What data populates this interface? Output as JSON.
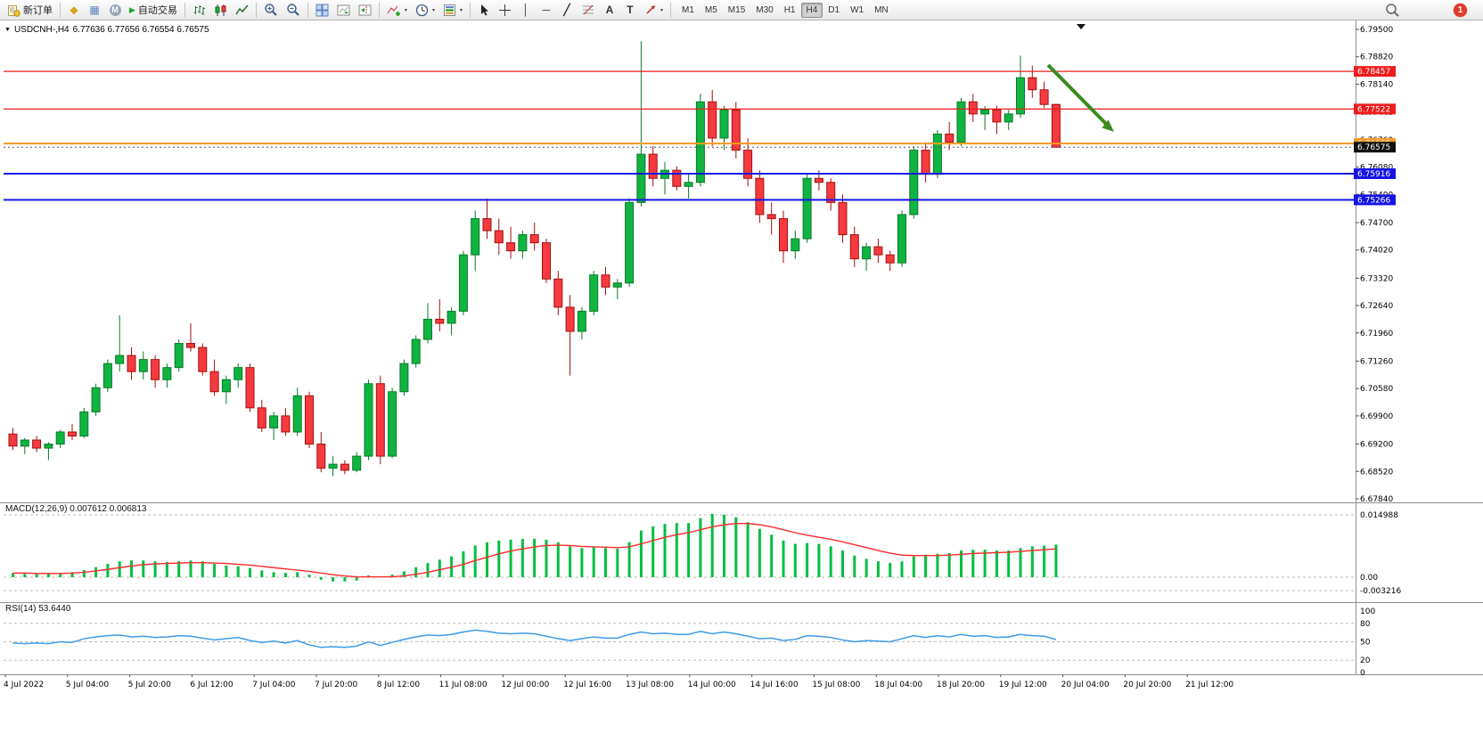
{
  "toolbar": {
    "new_order_label": "新订单",
    "autotrading_label": "自动交易",
    "timeframes": [
      "M1",
      "M5",
      "M15",
      "M30",
      "H1",
      "H4",
      "D1",
      "W1",
      "MN"
    ],
    "active_timeframe": "H4",
    "notification_count": "1"
  },
  "icons": {
    "metaeditor": "◆",
    "terminal": "▦",
    "metaquotes": "M",
    "autotrading_play": "▶",
    "vertical_line": "│",
    "horizontal_line": "─",
    "trendline": "╱",
    "text_tool": "A",
    "label_tool": "T",
    "dropdown_caret": "▾",
    "title_caret": "▼"
  },
  "chart_window": {
    "symbol_title": "USDCNH-,H4",
    "ohlc": "6.77636 6.77656 6.76554 6.76575"
  },
  "main_chart": {
    "price_max": 6.795,
    "price_min": 6.6784,
    "axis_ticks": [
      "6.79500",
      "6.78820",
      "6.78140",
      "6.77440",
      "6.76760",
      "6.76080",
      "6.75400",
      "6.74700",
      "6.74020",
      "6.73320",
      "6.72640",
      "6.71960",
      "6.71260",
      "6.70580",
      "6.69900",
      "6.69200",
      "6.68520",
      "6.67840"
    ],
    "levels": [
      {
        "label": "6.78457",
        "price": 6.78457,
        "color": "#ee1c1c",
        "width": 1.2
      },
      {
        "label": "6.77522",
        "price": 6.77522,
        "color": "#ee1c1c",
        "width": 1.2
      },
      {
        "label": "6.76665",
        "price": 6.76665,
        "color": "#f59a23",
        "width": 2
      },
      {
        "label": "6.75916",
        "price": 6.75916,
        "color": "#1414e6",
        "width": 2
      },
      {
        "label": "6.75266",
        "price": 6.75266,
        "color": "#1414e6",
        "width": 2
      }
    ],
    "current_price": {
      "label": "6.76575",
      "price": 6.76575,
      "badge_color": "#101010"
    },
    "up_color": "#0fb540",
    "up_stroke": "#0a7a2a",
    "down_color": "#f53b3f",
    "down_stroke": "#a50f0f",
    "arrow_color": "#3a8a1e",
    "candles": [
      [
        6.6945,
        6.696,
        6.6905,
        6.6915
      ],
      [
        6.6915,
        6.6935,
        6.6895,
        6.693
      ],
      [
        6.693,
        6.694,
        6.69,
        6.691
      ],
      [
        6.691,
        6.6925,
        6.688,
        6.692
      ],
      [
        6.692,
        6.6955,
        6.691,
        6.695
      ],
      [
        6.695,
        6.697,
        6.693,
        6.694
      ],
      [
        6.694,
        6.701,
        6.6935,
        6.7
      ],
      [
        6.7,
        6.707,
        6.699,
        6.706
      ],
      [
        6.706,
        6.713,
        6.705,
        6.712
      ],
      [
        6.712,
        6.724,
        6.71,
        6.714
      ],
      [
        6.714,
        6.716,
        6.708,
        6.71
      ],
      [
        6.71,
        6.715,
        6.708,
        6.713
      ],
      [
        6.713,
        6.714,
        6.706,
        6.708
      ],
      [
        6.708,
        6.712,
        6.706,
        6.711
      ],
      [
        6.711,
        6.718,
        6.71,
        6.717
      ],
      [
        6.717,
        6.722,
        6.715,
        6.716
      ],
      [
        6.716,
        6.717,
        6.709,
        6.71
      ],
      [
        6.71,
        6.713,
        6.704,
        6.705
      ],
      [
        6.705,
        6.709,
        6.702,
        6.708
      ],
      [
        6.708,
        6.712,
        6.706,
        6.711
      ],
      [
        6.711,
        6.712,
        6.7,
        6.701
      ],
      [
        6.701,
        6.703,
        6.695,
        6.696
      ],
      [
        6.696,
        6.7,
        6.693,
        6.699
      ],
      [
        6.699,
        6.701,
        6.694,
        6.695
      ],
      [
        6.695,
        6.706,
        6.694,
        6.704
      ],
      [
        6.704,
        6.705,
        6.691,
        6.692
      ],
      [
        6.692,
        6.695,
        6.685,
        6.686
      ],
      [
        6.686,
        6.689,
        6.684,
        6.687
      ],
      [
        6.687,
        6.688,
        6.6845,
        6.6855
      ],
      [
        6.6855,
        6.69,
        6.685,
        6.689
      ],
      [
        6.689,
        6.708,
        6.688,
        6.707
      ],
      [
        6.707,
        6.709,
        6.687,
        6.689
      ],
      [
        6.689,
        6.706,
        6.6885,
        6.705
      ],
      [
        6.705,
        6.713,
        6.704,
        6.712
      ],
      [
        6.712,
        6.719,
        6.711,
        6.718
      ],
      [
        6.718,
        6.727,
        6.717,
        6.723
      ],
      [
        6.723,
        6.728,
        6.72,
        6.722
      ],
      [
        6.722,
        6.726,
        6.719,
        6.725
      ],
      [
        6.725,
        6.74,
        6.724,
        6.739
      ],
      [
        6.739,
        6.75,
        6.735,
        6.748
      ],
      [
        6.748,
        6.753,
        6.743,
        6.745
      ],
      [
        6.745,
        6.748,
        6.739,
        6.742
      ],
      [
        6.742,
        6.746,
        6.738,
        6.74
      ],
      [
        6.74,
        6.745,
        6.738,
        6.744
      ],
      [
        6.744,
        6.747,
        6.74,
        6.742
      ],
      [
        6.742,
        6.743,
        6.732,
        6.733
      ],
      [
        6.733,
        6.735,
        6.724,
        6.726
      ],
      [
        6.726,
        6.729,
        6.709,
        6.72
      ],
      [
        6.72,
        6.726,
        6.718,
        6.725
      ],
      [
        6.725,
        6.735,
        6.724,
        6.734
      ],
      [
        6.734,
        6.736,
        6.729,
        6.731
      ],
      [
        6.731,
        6.733,
        6.728,
        6.732
      ],
      [
        6.732,
        6.753,
        6.731,
        6.752
      ],
      [
        6.752,
        6.792,
        6.751,
        6.764
      ],
      [
        6.764,
        6.766,
        6.756,
        6.758
      ],
      [
        6.758,
        6.762,
        6.754,
        6.76
      ],
      [
        6.76,
        6.761,
        6.755,
        6.756
      ],
      [
        6.756,
        6.759,
        6.753,
        6.757
      ],
      [
        6.757,
        6.779,
        6.756,
        6.777
      ],
      [
        6.777,
        6.78,
        6.766,
        6.768
      ],
      [
        6.768,
        6.776,
        6.765,
        6.775
      ],
      [
        6.775,
        6.777,
        6.763,
        6.765
      ],
      [
        6.765,
        6.768,
        6.756,
        6.758
      ],
      [
        6.758,
        6.76,
        6.747,
        6.749
      ],
      [
        6.749,
        6.752,
        6.744,
        6.748
      ],
      [
        6.748,
        6.75,
        6.737,
        6.74
      ],
      [
        6.74,
        6.745,
        6.738,
        6.743
      ],
      [
        6.743,
        6.759,
        6.742,
        6.758
      ],
      [
        6.758,
        6.76,
        6.755,
        6.757
      ],
      [
        6.757,
        6.758,
        6.75,
        6.752
      ],
      [
        6.752,
        6.754,
        6.742,
        6.744
      ],
      [
        6.744,
        6.746,
        6.736,
        6.738
      ],
      [
        6.738,
        6.742,
        6.735,
        6.741
      ],
      [
        6.741,
        6.743,
        6.737,
        6.739
      ],
      [
        6.739,
        6.74,
        6.735,
        6.737
      ],
      [
        6.737,
        6.75,
        6.736,
        6.749
      ],
      [
        6.749,
        6.766,
        6.748,
        6.765
      ],
      [
        6.765,
        6.767,
        6.757,
        6.759
      ],
      [
        6.759,
        6.77,
        6.758,
        6.769
      ],
      [
        6.769,
        6.772,
        6.765,
        6.767
      ],
      [
        6.767,
        6.778,
        6.766,
        6.777
      ],
      [
        6.777,
        6.779,
        6.772,
        6.774
      ],
      [
        6.774,
        6.776,
        6.77,
        6.775
      ],
      [
        6.775,
        6.776,
        6.769,
        6.772
      ],
      [
        6.772,
        6.775,
        6.77,
        6.774
      ],
      [
        6.774,
        6.7885,
        6.773,
        6.783
      ],
      [
        6.783,
        6.786,
        6.778,
        6.78
      ],
      [
        6.78,
        6.782,
        6.7755,
        6.77636
      ],
      [
        6.77636,
        6.77656,
        6.76554,
        6.76575
      ]
    ]
  },
  "macd": {
    "label": "MACD(12,26,9) 0.007612 0.006813",
    "scale_labels": [
      "0.014988",
      "0.00",
      "-0.003216"
    ],
    "scale_values": [
      0.014988,
      0,
      -0.003216
    ],
    "hist_color": "#00bf40",
    "signal_color": "#ff2a2a",
    "histogram": [
      0.0008,
      0.0006,
      0.0007,
      0.0006,
      0.0008,
      0.001,
      0.0015,
      0.0022,
      0.003,
      0.0036,
      0.0038,
      0.0038,
      0.0036,
      0.0034,
      0.0036,
      0.0038,
      0.0036,
      0.003,
      0.0026,
      0.0024,
      0.002,
      0.0014,
      0.001,
      0.0008,
      0.001,
      0.0004,
      -0.0004,
      -0.0008,
      -0.0008,
      -0.0006,
      0.0002,
      0,
      0.0004,
      0.0012,
      0.0022,
      0.0032,
      0.004,
      0.0048,
      0.006,
      0.0074,
      0.0082,
      0.0086,
      0.0088,
      0.009,
      0.009,
      0.0088,
      0.0082,
      0.0072,
      0.0068,
      0.007,
      0.0068,
      0.0066,
      0.0082,
      0.011,
      0.012,
      0.0126,
      0.0128,
      0.0128,
      0.014,
      0.015,
      0.0148,
      0.0142,
      0.013,
      0.0114,
      0.01,
      0.0086,
      0.0078,
      0.008,
      0.0078,
      0.0072,
      0.0062,
      0.005,
      0.0042,
      0.0036,
      0.0032,
      0.0036,
      0.0048,
      0.0052,
      0.0054,
      0.0056,
      0.0062,
      0.0064,
      0.0064,
      0.0062,
      0.0062,
      0.0068,
      0.0072,
      0.0074,
      0.007612
    ],
    "signal": [
      0.001,
      0.001,
      0.0009,
      0.0009,
      0.0009,
      0.001,
      0.0012,
      0.0015,
      0.0019,
      0.0023,
      0.0027,
      0.003,
      0.0032,
      0.0033,
      0.0034,
      0.0035,
      0.0035,
      0.0034,
      0.0033,
      0.0031,
      0.0029,
      0.0026,
      0.0023,
      0.002,
      0.0017,
      0.0014,
      0.001,
      0.0006,
      0.0003,
      0.0001,
      0.0001,
      0.0001,
      0.0001,
      0.0003,
      0.0007,
      0.0012,
      0.0018,
      0.0024,
      0.0031,
      0.004,
      0.0048,
      0.0056,
      0.0063,
      0.0068,
      0.0073,
      0.0076,
      0.0077,
      0.0076,
      0.0074,
      0.0073,
      0.0072,
      0.0071,
      0.0073,
      0.008,
      0.0088,
      0.0096,
      0.0102,
      0.0107,
      0.0114,
      0.0121,
      0.0126,
      0.0129,
      0.0129,
      0.0126,
      0.0121,
      0.0114,
      0.0107,
      0.0101,
      0.0096,
      0.0091,
      0.0085,
      0.0078,
      0.0071,
      0.0064,
      0.0058,
      0.0053,
      0.0052,
      0.0052,
      0.0052,
      0.0053,
      0.0055,
      0.0057,
      0.0058,
      0.0059,
      0.006,
      0.0062,
      0.0064,
      0.0066,
      0.006813
    ]
  },
  "rsi": {
    "label": "RSI(14) 53.6440",
    "scale_labels": [
      "100",
      "80",
      "50",
      "20",
      "0"
    ],
    "scale_values": [
      100,
      80,
      50,
      20,
      0
    ],
    "level_values": [
      80,
      50,
      20
    ],
    "line_color": "#3d9be9",
    "values": [
      48,
      47,
      48,
      47,
      50,
      49,
      55,
      58,
      60,
      61,
      58,
      59,
      57,
      58,
      60,
      59,
      56,
      53,
      55,
      57,
      52,
      49,
      51,
      48,
      52,
      45,
      41,
      42,
      41,
      43,
      50,
      44,
      49,
      54,
      58,
      61,
      60,
      62,
      66,
      69,
      67,
      64,
      63,
      64,
      63,
      59,
      55,
      52,
      55,
      58,
      56,
      56,
      62,
      66,
      63,
      64,
      62,
      62,
      67,
      63,
      66,
      63,
      59,
      55,
      56,
      52,
      54,
      60,
      59,
      57,
      53,
      50,
      52,
      51,
      50,
      55,
      60,
      57,
      60,
      58,
      62,
      59,
      60,
      57,
      58,
      62,
      60,
      59,
      53.644
    ]
  },
  "time_axis": {
    "labels": [
      "4 Jul 2022",
      "5 Jul 04:00",
      "5 Jul 20:00",
      "6 Jul 12:00",
      "7 Jul 04:00",
      "7 Jul 20:00",
      "8 Jul 12:00",
      "11 Jul 08:00",
      "12 Jul 00:00",
      "12 Jul 16:00",
      "13 Jul 08:00",
      "14 Jul 00:00",
      "14 Jul 16:00",
      "15 Jul 08:00",
      "18 Jul 04:00",
      "18 Jul 20:00",
      "19 Jul 12:00",
      "20 Jul 04:00",
      "20 Jul 20:00",
      "21 Jul 12:00"
    ]
  }
}
